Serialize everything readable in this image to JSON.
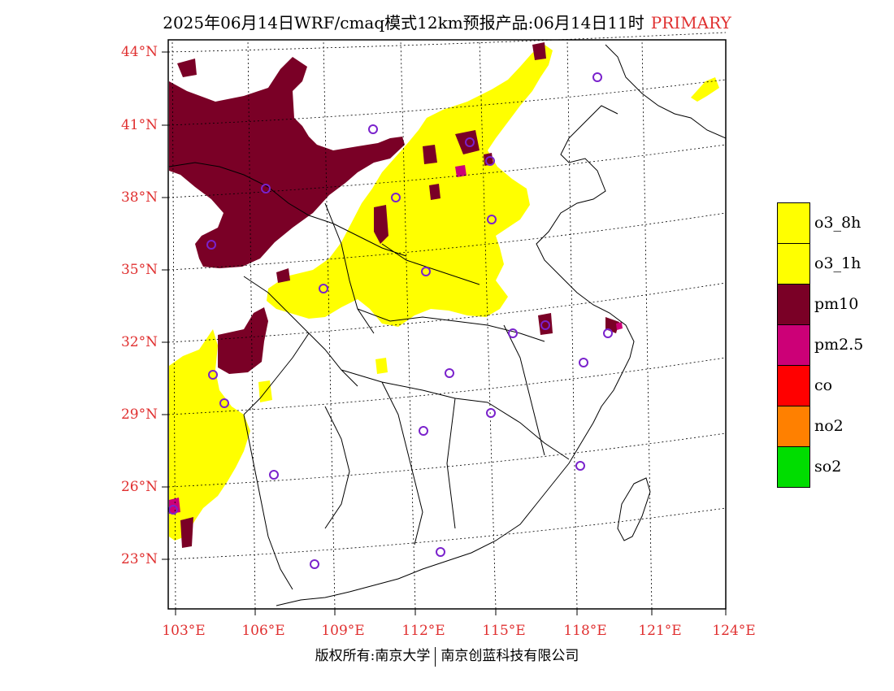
{
  "header": {
    "title": "2025年06月14日WRF/cmaq模式12km预报产品:06月14日11时",
    "tag": "PRIMARY"
  },
  "axes": {
    "lat_labels": [
      "44°N",
      "41°N",
      "38°N",
      "35°N",
      "32°N",
      "29°N",
      "26°N",
      "23°N"
    ],
    "lon_labels": [
      "103°E",
      "106°E",
      "109°E",
      "112°E",
      "115°E",
      "118°E",
      "121°E",
      "124°E"
    ]
  },
  "legend": {
    "items": [
      {
        "label": "o3_8h",
        "color": "#ffff00"
      },
      {
        "label": "o3_1h",
        "color": "#ffff00"
      },
      {
        "label": "pm10",
        "color": "#7a0026"
      },
      {
        "label": "pm2.5",
        "color": "#cc0077"
      },
      {
        "label": "co",
        "color": "#ff0000"
      },
      {
        "label": "no2",
        "color": "#ff8000"
      },
      {
        "label": "so2",
        "color": "#00dd00"
      }
    ]
  },
  "footer": {
    "left": "版权所有:南京大学",
    "right": "南京创蓝科技有限公司"
  }
}
